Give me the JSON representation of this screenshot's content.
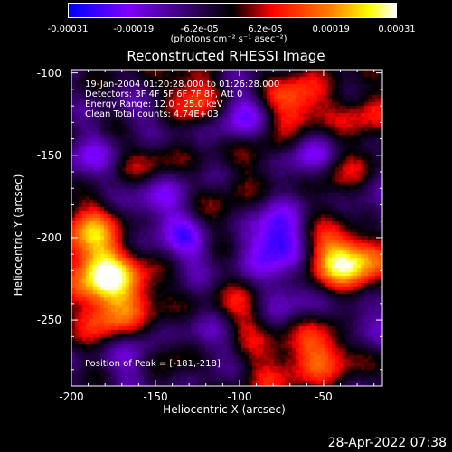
{
  "colorbar": {
    "ticks": [
      "-0.00031",
      "-0.00019",
      "-6.2e-05",
      "6.2e-05",
      "0.00019",
      "0.00031"
    ],
    "unit_label": "(photons cm⁻² s⁻¹ asec⁻²)",
    "colors": [
      "#0000ff",
      "#8000ff",
      "#000000",
      "#ff0000",
      "#ff8000",
      "#ffff00",
      "#ffffff"
    ]
  },
  "chart_data": {
    "type": "heatmap",
    "title": "Reconstructed RHESSI Image",
    "xlabel": "Heliocentric X (arcsec)",
    "ylabel": "Heliocentric Y (arcsec)",
    "xlim": [
      -200,
      -15
    ],
    "ylim": [
      -290,
      -98
    ],
    "x_ticks": [
      "-200",
      "-150",
      "-100",
      "-50"
    ],
    "x_tick_values": [
      -200,
      -150,
      -100,
      -50
    ],
    "y_ticks": [
      "-100",
      "-150",
      "-200",
      "-250"
    ],
    "y_tick_values": [
      -100,
      -150,
      -200,
      -250
    ],
    "annotations": [
      "19-Jan-2004 01:20:28.000 to 01:26:28.000",
      "Detectors: 3F 4F 5F 6F 7F 8F, Att 0",
      "Energy Range: 12.0 - 25.0 keV",
      "Clean     Total counts: 4.74E+03"
    ],
    "peak_label": "Position of Peak = [-181,-218]",
    "peak_position": [
      -181,
      -218
    ],
    "value_range": [
      -0.00031,
      0.00031
    ],
    "hotspots": [
      {
        "x": -183,
        "y": -222,
        "v": 0.00031
      },
      {
        "x": -190,
        "y": -195,
        "v": 0.00022
      },
      {
        "x": -178,
        "y": -250,
        "v": 0.00018
      },
      {
        "x": -130,
        "y": -115,
        "v": 0.0002
      },
      {
        "x": -68,
        "y": -118,
        "v": 0.00022
      },
      {
        "x": -30,
        "y": -215,
        "v": 0.00024
      },
      {
        "x": -48,
        "y": -210,
        "v": 0.0002
      },
      {
        "x": -155,
        "y": -150,
        "v": 0.00014
      },
      {
        "x": -115,
        "y": -190,
        "v": 0.00012
      },
      {
        "x": -100,
        "y": -245,
        "v": 0.00014
      },
      {
        "x": -40,
        "y": -165,
        "v": 0.00013
      },
      {
        "x": -45,
        "y": -265,
        "v": 0.00015
      },
      {
        "x": -140,
        "y": -270,
        "v": 0.0001
      },
      {
        "x": -90,
        "y": -150,
        "v": 9e-05
      },
      {
        "x": -160,
        "y": -230,
        "v": 0.00012
      },
      {
        "x": -60,
        "y": -270,
        "v": 0.00011
      },
      {
        "x": -85,
        "y": -280,
        "v": 0.0001
      },
      {
        "x": -25,
        "y": -125,
        "v": 0.00012
      },
      {
        "x": -80,
        "y": -200,
        "v": -0.00026
      },
      {
        "x": -130,
        "y": -200,
        "v": -0.00018
      },
      {
        "x": -100,
        "y": -125,
        "v": -0.00016
      },
      {
        "x": -150,
        "y": -130,
        "v": -0.00012
      },
      {
        "x": -60,
        "y": -150,
        "v": -0.00014
      },
      {
        "x": -150,
        "y": -175,
        "v": -0.00013
      },
      {
        "x": -165,
        "y": -270,
        "v": -0.00014
      },
      {
        "x": -120,
        "y": -260,
        "v": -0.00012
      },
      {
        "x": -30,
        "y": -250,
        "v": -0.00013
      },
      {
        "x": -75,
        "y": -235,
        "v": -0.00011
      },
      {
        "x": -190,
        "y": -150,
        "v": -0.00011
      },
      {
        "x": -25,
        "y": -180,
        "v": -0.0001
      }
    ]
  },
  "footer": {
    "date": "28-Apr-2022 07:38"
  }
}
